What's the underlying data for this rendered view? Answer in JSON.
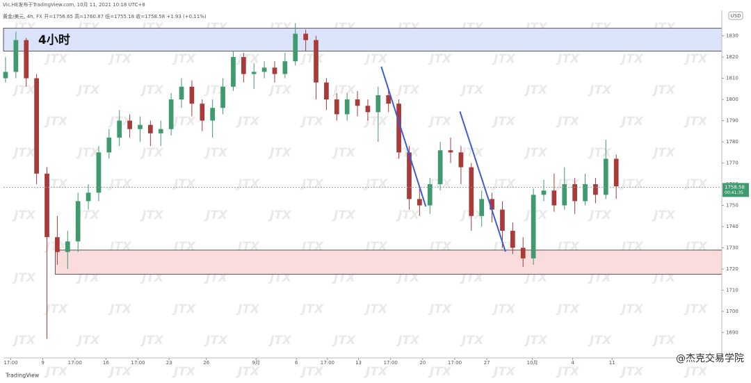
{
  "chart_data": {
    "type": "candlestick",
    "header": "Vic.HE发布于TradingView.com, 10月 11, 2021 10:18 UTC+8",
    "legend_line": "黄金/美元, 4h, FX  开=1756.65  高=1760.87  低=1755.18  收=1758.58  +1.93 (+0.11%)",
    "currency": "USD",
    "zone_label": "4小时",
    "watermark": "JTX",
    "brand": "TradingView",
    "credit": "@杰克交易学院",
    "countdown": "00:41:35",
    "last_price": 1758.58,
    "up_color": "#3f9a6e",
    "down_color": "#a83a3a",
    "xlim": [
      -0.2,
      69.2
    ],
    "ylim": [
      1678,
      1842
    ],
    "yticks": [
      1690,
      1700,
      1710,
      1720,
      1730,
      1740,
      1750,
      1760,
      1770,
      1780,
      1790,
      1800,
      1810,
      1820,
      1830
    ],
    "xticks": [
      {
        "value": 0.5,
        "label": "17:00"
      },
      {
        "value": 3.6,
        "label": "9"
      },
      {
        "value": 6.7,
        "label": "17:00"
      },
      {
        "value": 9.7,
        "label": "16"
      },
      {
        "value": 12.8,
        "label": "17:00"
      },
      {
        "value": 15.8,
        "label": "23"
      },
      {
        "value": 19.4,
        "label": "26"
      },
      {
        "value": 24.2,
        "label": "9月"
      },
      {
        "value": 28.1,
        "label": "6"
      },
      {
        "value": 31.1,
        "label": "17:00"
      },
      {
        "value": 34.1,
        "label": "13"
      },
      {
        "value": 37.2,
        "label": "17:00"
      },
      {
        "value": 40.3,
        "label": "20"
      },
      {
        "value": 43.4,
        "label": "17:00"
      },
      {
        "value": 46.5,
        "label": "27"
      },
      {
        "value": 50.9,
        "label": "10月"
      },
      {
        "value": 54.8,
        "label": "4"
      },
      {
        "value": 58.6,
        "label": "11"
      }
    ],
    "open": [
      1810,
      1813,
      1828,
      1810,
      1765,
      1735,
      1728,
      1733,
      1752,
      1756,
      1775,
      1782,
      1790,
      1786,
      1788,
      1784,
      1786,
      1800,
      1806,
      1798,
      1790,
      1796,
      1806,
      1820,
      1812,
      1813,
      1815,
      1812,
      1818,
      1831,
      1828,
      1808,
      1800,
      1793,
      1800,
      1797,
      1794,
      1802,
      1798,
      1775,
      1753,
      1750,
      1760,
      1776,
      1775,
      1768,
      1745,
      1753,
      1748,
      1738,
      1730,
      1725,
      1755,
      1757,
      1750,
      1760,
      1752,
      1760,
      1755,
      1772
    ],
    "high": [
      1820,
      1832,
      1829,
      1812,
      1768,
      1745,
      1738,
      1756,
      1760,
      1778,
      1786,
      1795,
      1793,
      1792,
      1790,
      1790,
      1803,
      1810,
      1809,
      1800,
      1800,
      1810,
      1823,
      1822,
      1817,
      1818,
      1818,
      1822,
      1836,
      1833,
      1830,
      1810,
      1803,
      1803,
      1804,
      1800,
      1806,
      1805,
      1800,
      1778,
      1758,
      1763,
      1780,
      1782,
      1778,
      1770,
      1757,
      1756,
      1752,
      1742,
      1735,
      1758,
      1762,
      1765,
      1768,
      1763,
      1765,
      1763,
      1781,
      1774
    ],
    "low": [
      1808,
      1810,
      1806,
      1760,
      1687,
      1722,
      1720,
      1728,
      1748,
      1752,
      1772,
      1778,
      1782,
      1780,
      1778,
      1778,
      1783,
      1796,
      1792,
      1785,
      1782,
      1793,
      1804,
      1808,
      1805,
      1810,
      1808,
      1810,
      1816,
      1823,
      1800,
      1795,
      1790,
      1790,
      1792,
      1790,
      1780,
      1794,
      1772,
      1748,
      1745,
      1746,
      1757,
      1770,
      1760,
      1738,
      1740,
      1742,
      1730,
      1727,
      1721,
      1722,
      1752,
      1747,
      1748,
      1746,
      1750,
      1751,
      1753,
      1753
    ],
    "close": [
      1813,
      1828,
      1810,
      1765,
      1735,
      1728,
      1733,
      1752,
      1756,
      1775,
      1782,
      1790,
      1786,
      1788,
      1784,
      1786,
      1800,
      1806,
      1798,
      1790,
      1796,
      1806,
      1820,
      1812,
      1813,
      1815,
      1812,
      1818,
      1831,
      1828,
      1808,
      1800,
      1793,
      1800,
      1797,
      1794,
      1802,
      1798,
      1775,
      1753,
      1750,
      1760,
      1776,
      1775,
      1768,
      1745,
      1753,
      1748,
      1738,
      1730,
      1725,
      1755,
      1757,
      1750,
      1760,
      1752,
      1760,
      1755,
      1772,
      1759
    ],
    "zones": [
      {
        "x": [
          -0.2,
          69.2
        ],
        "y": [
          1822.8,
          1833.6
        ],
        "color": "#dbe3fb",
        "border": "#555"
      },
      {
        "x": [
          4.8,
          69.2
        ],
        "y": [
          1717.5,
          1728.9
        ],
        "color": "#fbdcdc",
        "border": "#555"
      }
    ],
    "trendlines": [
      {
        "x": [
          36.3,
          40.6
        ],
        "y": [
          1815.5,
          1749.5
        ],
        "color": "#3b5bdb"
      },
      {
        "x": [
          43.9,
          48.3
        ],
        "y": [
          1794.3,
          1728.2
        ],
        "color": "#3b5bdb"
      }
    ]
  }
}
